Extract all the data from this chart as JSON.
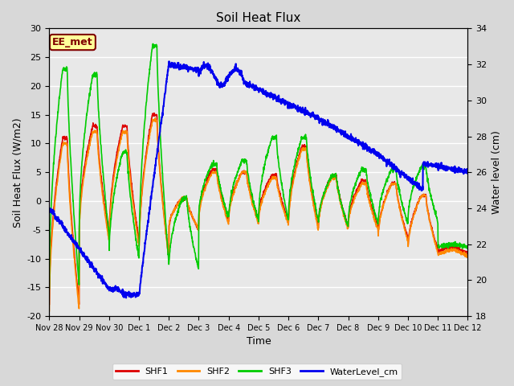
{
  "title": "Soil Heat Flux",
  "ylabel_left": "Soil Heat Flux (W/m2)",
  "ylabel_right": "Water level (cm)",
  "xlabel": "Time",
  "ylim_left": [
    -20,
    30
  ],
  "ylim_right": [
    18,
    34
  ],
  "background_color": "#d8d8d8",
  "plot_bg_color": "#e8e8e8",
  "annotation_text": "EE_met",
  "annotation_box_color": "#ffff99",
  "annotation_text_color": "#800000",
  "annotation_border_color": "#800000",
  "x_tick_labels": [
    "Nov 28",
    "Nov 29",
    "Nov 30",
    "Dec 1",
    "Dec 2",
    "Dec 3",
    "Dec 4",
    "Dec 5",
    "Dec 6",
    "Dec 7",
    "Dec 8",
    "Dec 9",
    "Dec 10",
    "Dec 11",
    "Dec 12"
  ],
  "series": {
    "SHF1": {
      "color": "#dd0000",
      "lw": 1.2
    },
    "SHF2": {
      "color": "#ff8800",
      "lw": 1.2
    },
    "SHF3": {
      "color": "#00cc00",
      "lw": 1.2
    },
    "WaterLevel_cm": {
      "color": "#0000ee",
      "lw": 1.5
    }
  },
  "grid_color": "#ffffff",
  "grid_lw": 1.0,
  "left_yticks": [
    -20,
    -15,
    -10,
    -5,
    0,
    5,
    10,
    15,
    20,
    25,
    30
  ],
  "right_yticks": [
    18,
    20,
    22,
    24,
    26,
    28,
    30,
    32,
    34
  ],
  "title_fontsize": 11,
  "axis_fontsize": 9,
  "tick_fontsize": 8,
  "xtick_fontsize": 7
}
